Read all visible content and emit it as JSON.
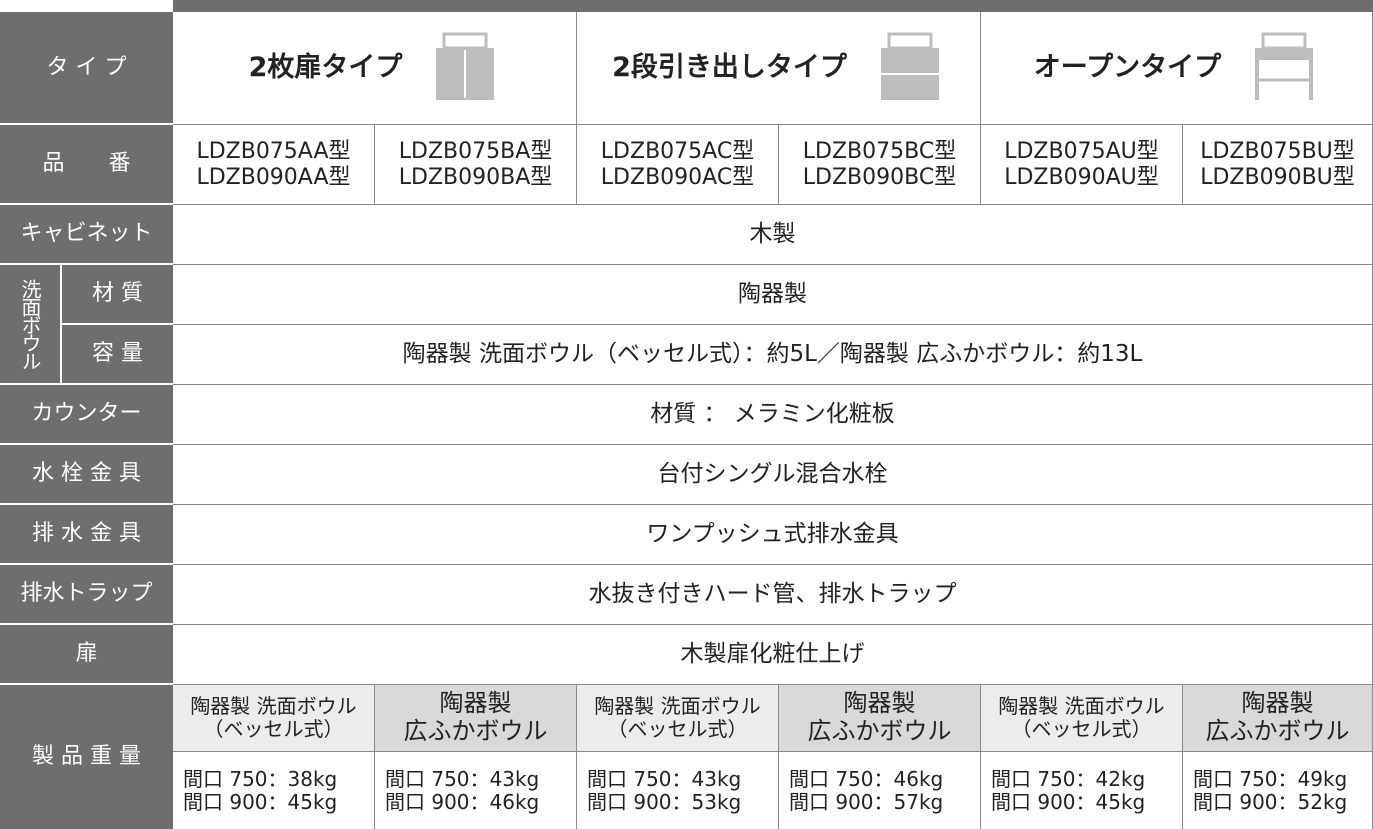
{
  "types": {
    "label": "タ イ プ",
    "names": [
      "2枚扉タイプ",
      "2段引き出しタイプ",
      "オープンタイプ"
    ]
  },
  "models": {
    "label": "品　　番",
    "values": [
      [
        "LDZB075AA型",
        "LDZB090AA型"
      ],
      [
        "LDZB075BA型",
        "LDZB090BA型"
      ],
      [
        "LDZB075AC型",
        "LDZB090AC型"
      ],
      [
        "LDZB075BC型",
        "LDZB090BC型"
      ],
      [
        "LDZB075AU型",
        "LDZB090AU型"
      ],
      [
        "LDZB075BU型",
        "LDZB090BU型"
      ]
    ]
  },
  "cabinet": {
    "label": "キャビネット",
    "value": "木製"
  },
  "bowl": {
    "group": "洗面ボウル",
    "material": {
      "label": "材 質",
      "value": "陶器製"
    },
    "capacity": {
      "label": "容 量",
      "value": "陶器製 洗面ボウル（ベッセル式）：約5L／陶器製 広ふかボウル：約13L"
    }
  },
  "counter": {
    "label": "カウンター",
    "value": "材質 ： メラミン化粧板"
  },
  "faucet": {
    "label": "水 栓 金 具",
    "value": "台付シングル混合水栓"
  },
  "drain": {
    "label": "排 水 金 具",
    "value": "ワンプッシュ式排水金具"
  },
  "trap": {
    "label": "排水トラップ",
    "value": "水抜き付きハード管、排水トラップ"
  },
  "door": {
    "label": "扉",
    "value": "木製扉化粧仕上げ"
  },
  "weight": {
    "label": "製 品 重 量",
    "columns": [
      {
        "bowl": [
          "陶器製 洗面ボウル",
          "（ベッセル式）"
        ],
        "weights": [
          "間口 750：38kg",
          "間口 900：45kg"
        ]
      },
      {
        "bowl": [
          "陶器製",
          "広ふかボウル"
        ],
        "weights": [
          "間口 750：43kg",
          "間口 900：46kg"
        ]
      },
      {
        "bowl": [
          "陶器製 洗面ボウル",
          "（ベッセル式）"
        ],
        "weights": [
          "間口 750：43kg",
          "間口 900：53kg"
        ]
      },
      {
        "bowl": [
          "陶器製",
          "広ふかボウル"
        ],
        "weights": [
          "間口 750：46kg",
          "間口 900：57kg"
        ]
      },
      {
        "bowl": [
          "陶器製 洗面ボウル",
          "（ベッセル式）"
        ],
        "weights": [
          "間口 750：42kg",
          "間口 900：45kg"
        ]
      },
      {
        "bowl": [
          "陶器製",
          "広ふかボウル"
        ],
        "weights": [
          "間口 750：49kg",
          "間口 900：52kg"
        ]
      }
    ]
  }
}
